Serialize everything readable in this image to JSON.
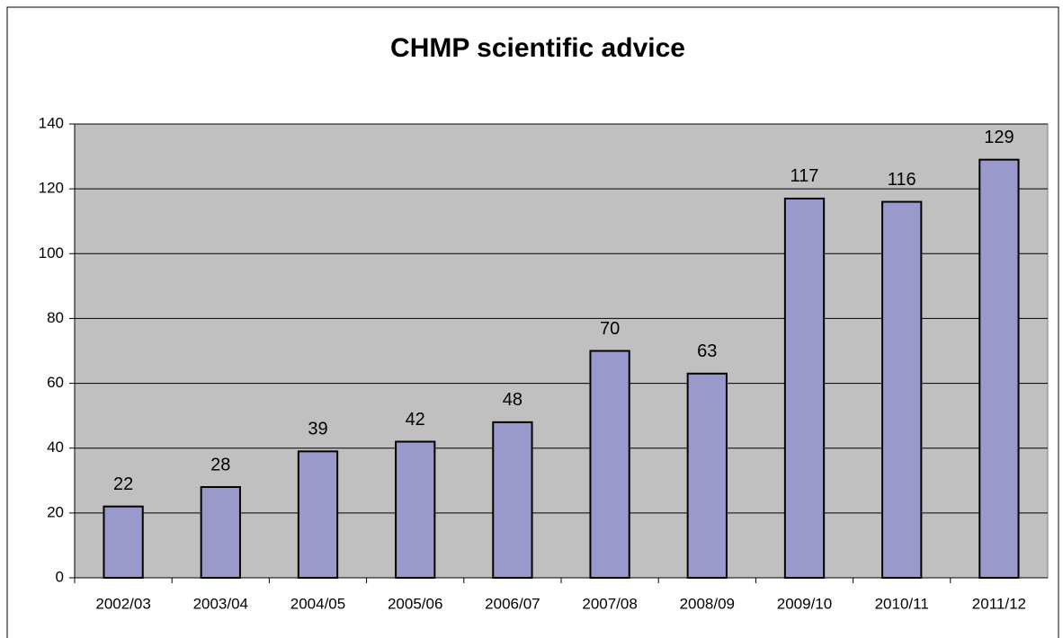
{
  "chart_data": {
    "type": "bar",
    "title": "CHMP scientific advice",
    "categories": [
      "2002/03",
      "2003/04",
      "2004/05",
      "2005/06",
      "2006/07",
      "2007/08",
      "2008/09",
      "2009/10",
      "2010/11",
      "2011/12"
    ],
    "values": [
      22,
      28,
      39,
      42,
      48,
      70,
      63,
      117,
      116,
      129
    ],
    "color": "#9999cc",
    "ylim": [
      0,
      140
    ],
    "yticks": [
      0,
      20,
      40,
      60,
      80,
      100,
      120,
      140
    ],
    "grid": true
  }
}
